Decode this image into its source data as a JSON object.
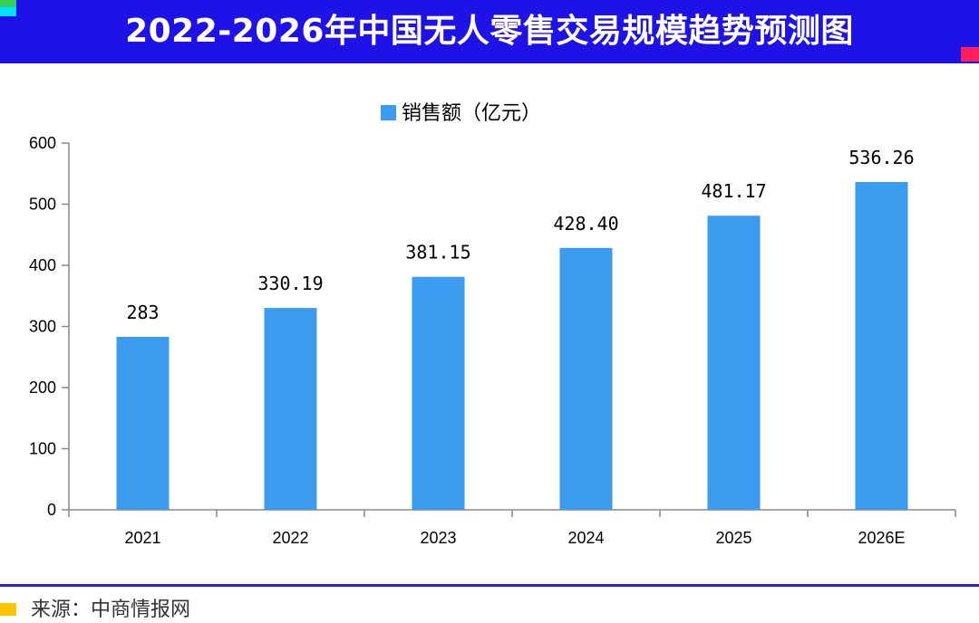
{
  "header": {
    "title": "2022-2026年中国无人零售交易规模趋势预测图"
  },
  "source": {
    "text": "来源：中商情报网"
  },
  "colors": {
    "banner": "#1f12e6",
    "bar": "#3a9bef",
    "divider": "#2b1fd0",
    "source_mark": "#ffc400"
  },
  "chart_data": {
    "type": "bar",
    "categories": [
      "2021",
      "2022",
      "2023",
      "2024",
      "2025",
      "2026E"
    ],
    "series": [
      {
        "name": "销售额（亿元）",
        "values": [
          283,
          330.19,
          381.15,
          428.4,
          481.17,
          536.26
        ]
      }
    ],
    "data_labels": [
      "283",
      "330.19",
      "381.15",
      "428.40",
      "481.17",
      "536.26"
    ],
    "ylim": [
      0,
      600
    ],
    "yticks": [
      0,
      100,
      200,
      300,
      400,
      500,
      600
    ],
    "legend_position": "top-center",
    "grid": false
  }
}
